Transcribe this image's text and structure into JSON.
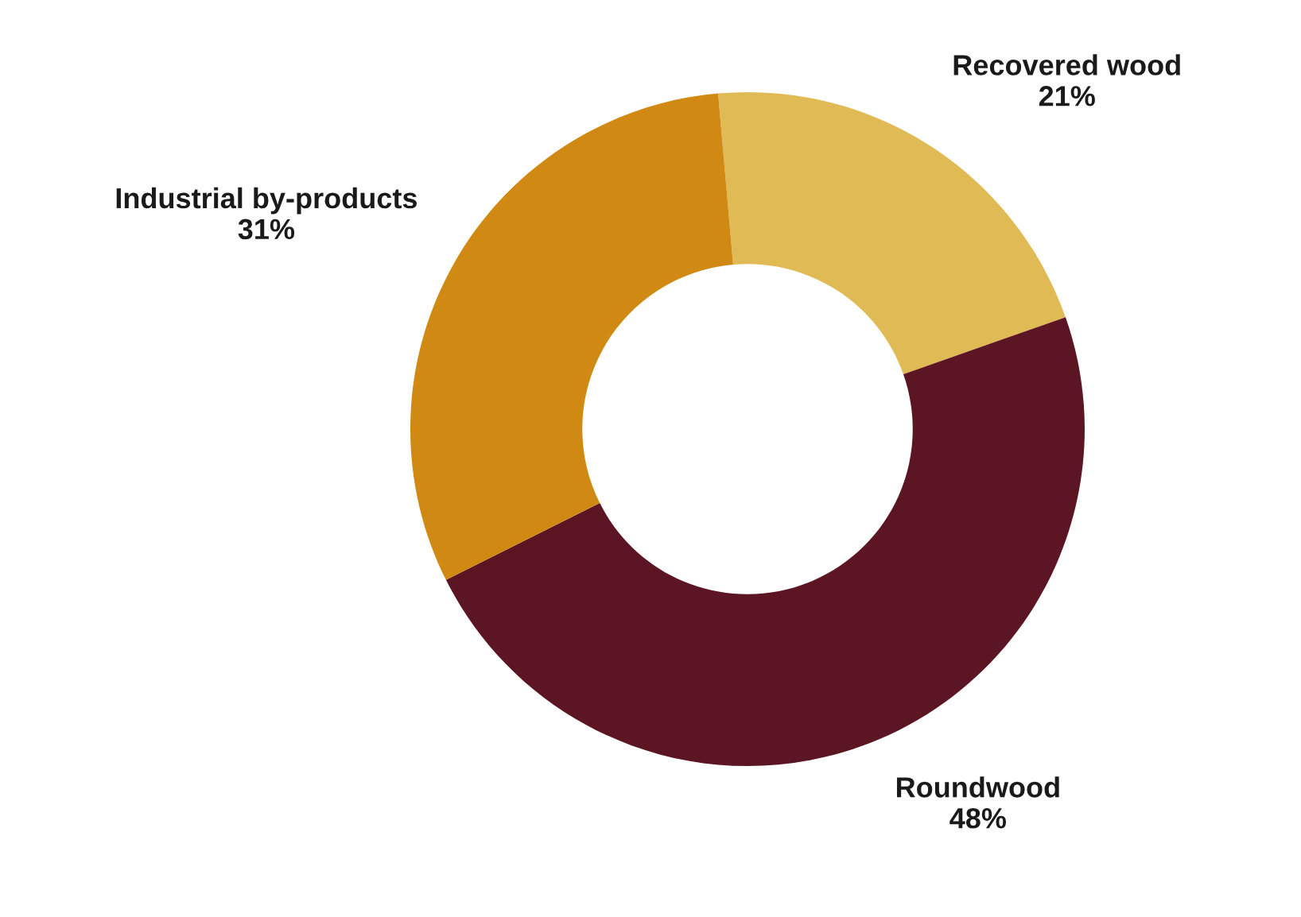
{
  "chart_data": {
    "type": "donut",
    "categories": [
      "Recovered wood",
      "Roundwood",
      "Industrial by-products"
    ],
    "values": [
      21,
      48,
      31
    ],
    "colors": [
      "#e0bb55",
      "#5c1522",
      "#d08a14"
    ],
    "value_labels": [
      "21%",
      "48%",
      "31%"
    ],
    "legend": false
  }
}
